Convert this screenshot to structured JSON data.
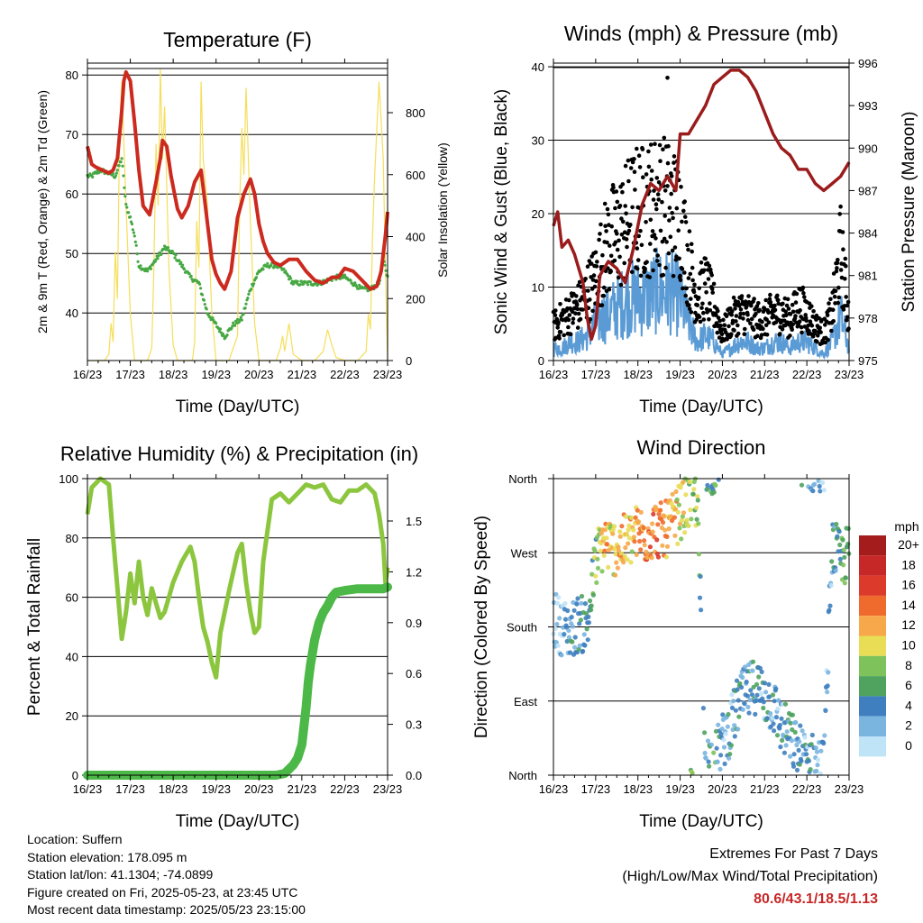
{
  "info": {
    "location": "Location: Suffern",
    "elevation": "Station elevation: 178.095 m",
    "latlon": "Station lat/lon: 41.1304; -74.0899",
    "created": "Figure created on Fri, 2025-05-23, at 23:45 UTC",
    "recent": "Most recent data timestamp: 2025/05/23 23:15:00"
  },
  "extremes": {
    "title": "Extremes For Past 7 Days",
    "subtitle": "(High/Low/Max Wind/Total Precipitation)",
    "values": "80.6/43.1/18.5/1.13"
  },
  "colors": {
    "temp": "#cc2a1f",
    "dew": "#46a843",
    "solar": "#f5de5a",
    "gust": "#000000",
    "wind": "#5b9bd5",
    "pressure": "#9b1c1c",
    "rh": "#8cc63f",
    "precip": "#4cb848"
  },
  "chart_data": [
    {
      "type": "line",
      "title": "Temperature (F)",
      "xlabel": "Time (Day/UTC)",
      "ylabel": "2m & 9m T (Red, Orange) & 2m Td (Green)",
      "y2label": "Solar Insolation (Yellow)",
      "xlim": [
        16,
        23
      ],
      "ylim": [
        32,
        82
      ],
      "y2lim": [
        0,
        960
      ],
      "xticks": [
        "16/23",
        "17/23",
        "18/23",
        "19/23",
        "20/23",
        "21/23",
        "22/23",
        "23/23"
      ],
      "yticks": [
        40,
        50,
        60,
        70,
        80
      ],
      "y2ticks": [
        0,
        200,
        400,
        600,
        800
      ],
      "series": [
        {
          "name": "2m T",
          "x": [
            16.0,
            16.1,
            16.2,
            16.35,
            16.5,
            16.6,
            16.7,
            16.8,
            16.85,
            16.9,
            17.0,
            17.1,
            17.2,
            17.3,
            17.45,
            17.6,
            17.7,
            17.75,
            17.85,
            17.95,
            18.1,
            18.2,
            18.35,
            18.5,
            18.65,
            18.8,
            18.9,
            19.0,
            19.1,
            19.2,
            19.35,
            19.5,
            19.65,
            19.8,
            19.9,
            20.0,
            20.1,
            20.2,
            20.35,
            20.5,
            20.7,
            20.9,
            21.1,
            21.3,
            21.5,
            21.7,
            21.85,
            22.0,
            22.2,
            22.4,
            22.6,
            22.75,
            22.85,
            22.95,
            23.0
          ],
          "y": [
            68,
            65,
            64.5,
            64,
            63.5,
            64,
            66,
            74,
            79,
            80.5,
            79,
            72,
            64,
            58,
            56.5,
            62,
            66,
            69,
            68,
            63,
            57.5,
            56,
            58,
            62,
            64,
            55,
            49,
            46.5,
            45,
            44,
            47,
            56,
            60,
            62.5,
            60,
            55,
            52,
            50,
            48.5,
            48,
            49,
            49,
            47,
            45.5,
            45,
            46,
            46,
            47.5,
            47,
            45.5,
            44,
            44.5,
            47,
            53,
            57
          ]
        },
        {
          "name": "2m Td",
          "x": [
            16.0,
            16.1,
            16.3,
            16.5,
            16.65,
            16.8,
            16.9,
            17.0,
            17.1,
            17.2,
            17.4,
            17.6,
            17.8,
            18.0,
            18.2,
            18.4,
            18.6,
            18.8,
            19.0,
            19.2,
            19.4,
            19.6,
            19.8,
            20.0,
            20.2,
            20.4,
            20.6,
            20.8,
            21.0,
            21.2,
            21.4,
            21.6,
            21.8,
            22.0,
            22.2,
            22.4,
            22.6,
            22.8,
            22.9,
            23.0
          ],
          "y": [
            63,
            63,
            64,
            63.5,
            63,
            66,
            58,
            56,
            53,
            48,
            47,
            49,
            51,
            50,
            48,
            46,
            45,
            40,
            38,
            36,
            38,
            39,
            44,
            47,
            48,
            48,
            47,
            45,
            45,
            45,
            45,
            45.5,
            46,
            46,
            45,
            44,
            44,
            45,
            49,
            46
          ]
        },
        {
          "name": "Solar Insolation",
          "x": [
            16.0,
            16.15,
            16.3,
            16.4,
            16.5,
            16.55,
            16.6,
            16.65,
            16.7,
            16.75,
            16.8,
            16.9,
            17.0,
            17.1,
            17.2,
            17.3,
            17.4,
            17.5,
            17.55,
            17.6,
            17.65,
            17.7,
            17.75,
            17.8,
            17.9,
            18.0,
            18.1,
            18.2,
            18.3,
            18.45,
            18.5,
            18.55,
            18.6,
            18.65,
            18.7,
            18.8,
            18.9,
            19.0,
            19.1,
            19.3,
            19.5,
            19.55,
            19.6,
            19.65,
            19.7,
            19.8,
            19.9,
            20.0,
            20.2,
            20.4,
            20.5,
            20.55,
            20.6,
            20.7,
            20.8,
            21.0,
            21.3,
            21.5,
            21.6,
            21.7,
            21.8,
            22.0,
            22.3,
            22.5,
            22.55,
            22.6,
            22.65,
            22.7,
            22.8,
            22.9,
            22.95,
            23.0
          ],
          "y": [
            0,
            0,
            0,
            0,
            20,
            120,
            60,
            350,
            200,
            760,
            900,
            500,
            150,
            0,
            0,
            0,
            0,
            40,
            300,
            700,
            500,
            940,
            650,
            820,
            300,
            50,
            0,
            0,
            0,
            0,
            60,
            450,
            300,
            900,
            650,
            500,
            150,
            0,
            0,
            0,
            80,
            500,
            750,
            600,
            880,
            450,
            120,
            0,
            0,
            0,
            40,
            80,
            30,
            120,
            20,
            0,
            0,
            30,
            100,
            50,
            10,
            0,
            0,
            30,
            150,
            100,
            400,
            600,
            900,
            650,
            300,
            0
          ]
        }
      ]
    },
    {
      "type": "scatter",
      "title": "Winds (mph) & Pressure (mb)",
      "xlabel": "Time (Day/UTC)",
      "ylabel": "Sonic Wind & Gust (Blue, Black)",
      "y2label": "Station Pressure (Maroon)",
      "xlim": [
        16,
        23
      ],
      "ylim": [
        0,
        40.5
      ],
      "y2lim": [
        975,
        996
      ],
      "xticks": [
        "16/23",
        "17/23",
        "18/23",
        "19/23",
        "20/23",
        "21/23",
        "22/23",
        "23/23"
      ],
      "yticks": [
        0,
        10,
        20,
        30,
        40
      ],
      "y2ticks": [
        975,
        978,
        981,
        984,
        987,
        990,
        993,
        996
      ],
      "series": [
        {
          "name": "Gust",
          "x": [
            16.0,
            16.2,
            16.4,
            16.6,
            16.8,
            17.0,
            17.2,
            17.4,
            17.6,
            17.8,
            18.0,
            18.2,
            18.4,
            18.6,
            18.8,
            19.0,
            19.2,
            19.4,
            19.6,
            19.8,
            20.0,
            20.2,
            20.4,
            20.6,
            20.8,
            21.0,
            21.2,
            21.4,
            21.6,
            21.8,
            22.0,
            22.2,
            22.4,
            22.6,
            22.8,
            23.0
          ],
          "y": [
            5,
            6,
            7,
            8,
            10,
            12,
            16,
            18,
            19,
            21,
            22,
            22,
            23,
            23,
            22,
            21,
            14,
            9,
            11,
            8,
            4,
            6,
            7,
            7,
            6,
            6,
            7,
            7,
            6,
            8,
            7,
            5,
            4,
            7,
            16,
            6
          ]
        },
        {
          "name": "Wind",
          "x": [
            16.0,
            16.2,
            16.4,
            16.6,
            16.8,
            17.0,
            17.2,
            17.4,
            17.6,
            17.8,
            18.0,
            18.2,
            18.4,
            18.6,
            18.8,
            19.0,
            19.2,
            19.4,
            19.6,
            19.8,
            20.0,
            20.2,
            20.4,
            20.6,
            20.8,
            21.0,
            21.2,
            21.4,
            21.6,
            21.8,
            22.0,
            22.2,
            22.4,
            22.6,
            22.8,
            23.0
          ],
          "y": [
            2,
            2,
            3,
            3,
            4,
            6,
            7,
            8,
            9,
            10,
            10,
            10,
            11,
            11,
            11,
            10,
            6,
            3,
            4,
            3,
            1,
            2,
            3,
            3,
            2,
            2,
            3,
            3,
            2,
            3,
            3,
            2,
            1,
            3,
            7,
            2
          ]
        },
        {
          "name": "Pressure",
          "x": [
            16.0,
            16.1,
            16.2,
            16.35,
            16.5,
            16.7,
            16.8,
            16.9,
            17.0,
            17.1,
            17.3,
            17.5,
            17.7,
            17.9,
            18.1,
            18.3,
            18.5,
            18.7,
            18.9,
            19.0,
            19.1,
            19.2,
            19.4,
            19.6,
            19.8,
            20.0,
            20.2,
            20.4,
            20.6,
            20.8,
            21.0,
            21.2,
            21.4,
            21.6,
            21.8,
            22.0,
            22.2,
            22.4,
            22.6,
            22.8,
            23.0
          ],
          "y": [
            984.5,
            985.5,
            983,
            983.5,
            982.5,
            980.5,
            978,
            976.5,
            977.5,
            981,
            982,
            981.5,
            980.5,
            983,
            986,
            987.5,
            987,
            988,
            987,
            991,
            991,
            991,
            992,
            993,
            994.5,
            995,
            995.5,
            995.5,
            995,
            994,
            992.5,
            991,
            990,
            989.5,
            988.5,
            988.5,
            987.5,
            987,
            987.5,
            988,
            989
          ]
        }
      ]
    },
    {
      "type": "line",
      "title": "Relative Humidity (%) & Precipitation (in)",
      "xlabel": "Time (Day/UTC)",
      "ylabel": "Percent & Total Rainfall",
      "xlim": [
        16,
        23
      ],
      "ylim": [
        0,
        100
      ],
      "y2lim": [
        0,
        1.75
      ],
      "xticks": [
        "16/23",
        "17/23",
        "18/23",
        "19/23",
        "20/23",
        "21/23",
        "22/23",
        "23/23"
      ],
      "yticks": [
        0,
        20,
        40,
        60,
        80,
        100
      ],
      "y2ticks": [
        "0.0",
        "0.3",
        "0.6",
        "0.9",
        "1.2",
        "1.5"
      ],
      "series": [
        {
          "name": "Relative Humidity",
          "x": [
            16.0,
            16.1,
            16.3,
            16.5,
            16.6,
            16.7,
            16.8,
            16.9,
            17.0,
            17.1,
            17.2,
            17.3,
            17.4,
            17.5,
            17.6,
            17.7,
            17.8,
            17.9,
            18.0,
            18.2,
            18.4,
            18.5,
            18.6,
            18.7,
            18.8,
            18.9,
            19.0,
            19.1,
            19.3,
            19.5,
            19.6,
            19.7,
            19.8,
            19.9,
            20.0,
            20.1,
            20.3,
            20.5,
            20.7,
            20.9,
            21.1,
            21.3,
            21.5,
            21.7,
            21.9,
            22.1,
            22.3,
            22.5,
            22.7,
            22.8,
            22.9,
            22.95,
            23.0
          ],
          "y": [
            88,
            97,
            100,
            98,
            80,
            63,
            46,
            55,
            68,
            58,
            72,
            60,
            54,
            63,
            58,
            53,
            55,
            60,
            65,
            72,
            77,
            72,
            60,
            50,
            45,
            38,
            33,
            48,
            62,
            75,
            78,
            65,
            55,
            48,
            50,
            72,
            93,
            95,
            92,
            95,
            98,
            97,
            98,
            93,
            92,
            96,
            96,
            98,
            95,
            88,
            78,
            65,
            70
          ]
        },
        {
          "name": "Total Rainfall",
          "x": [
            16.0,
            17.0,
            18.0,
            19.0,
            20.0,
            20.4,
            20.6,
            20.8,
            20.9,
            21.0,
            21.1,
            21.15,
            21.2,
            21.3,
            21.4,
            21.5,
            21.6,
            21.7,
            21.8,
            22.0,
            22.3,
            22.6,
            22.9,
            23.0
          ],
          "y": [
            0,
            0,
            0,
            0,
            0,
            0,
            0.01,
            0.06,
            0.1,
            0.18,
            0.4,
            0.55,
            0.65,
            0.8,
            0.9,
            0.96,
            1.0,
            1.05,
            1.08,
            1.09,
            1.1,
            1.1,
            1.1,
            1.11
          ]
        }
      ]
    },
    {
      "type": "scatter",
      "title": "Wind Direction",
      "xlabel": "Time (Day/UTC)",
      "ylabel": "Direction (Colored By Speed)",
      "xlim": [
        16,
        23
      ],
      "ylim": [
        0,
        360
      ],
      "xticks": [
        "16/23",
        "17/23",
        "18/23",
        "19/23",
        "20/23",
        "21/23",
        "22/23",
        "23/23"
      ],
      "yticks": [
        "North",
        "East",
        "South",
        "West",
        "North"
      ],
      "legend_title": "mph",
      "legend_labels": [
        "20+",
        "18",
        "16",
        "14",
        "12",
        "10",
        "8",
        "6",
        "4",
        "2",
        "0"
      ],
      "legend_colors": [
        "#a51c1c",
        "#c62828",
        "#dc3a2a",
        "#ef6b2d",
        "#f6a84a",
        "#e8dd55",
        "#7dc25a",
        "#4fa35e",
        "#3f7fbf",
        "#7ab5e0",
        "#bfe3f7"
      ],
      "series": [
        {
          "name": "Direction",
          "x": [
            16.0,
            16.2,
            16.4,
            16.6,
            16.8,
            17.0,
            17.2,
            17.4,
            17.6,
            17.8,
            18.0,
            18.2,
            18.4,
            18.6,
            18.8,
            19.0,
            19.2,
            19.4,
            19.6,
            19.8,
            20.0,
            20.2,
            20.4,
            20.6,
            20.8,
            21.0,
            21.2,
            21.4,
            21.6,
            21.8,
            22.0,
            22.2,
            22.4,
            22.6,
            22.8,
            23.0
          ],
          "y": [
            190,
            180,
            175,
            185,
            180,
            260,
            285,
            275,
            280,
            285,
            295,
            290,
            300,
            295,
            305,
            320,
            330,
            335,
            20,
            15,
            40,
            60,
            90,
            100,
            110,
            95,
            85,
            60,
            45,
            30,
            20,
            15,
            10,
            280,
            260,
            270
          ],
          "speed": [
            1,
            2,
            3,
            4,
            5,
            7,
            12,
            10,
            12,
            11,
            12,
            14,
            13,
            14,
            12,
            10,
            9,
            8,
            3,
            6,
            2,
            3,
            4,
            3,
            3,
            3,
            3,
            3,
            4,
            4,
            3,
            3,
            2,
            3,
            6,
            6
          ]
        }
      ]
    }
  ]
}
